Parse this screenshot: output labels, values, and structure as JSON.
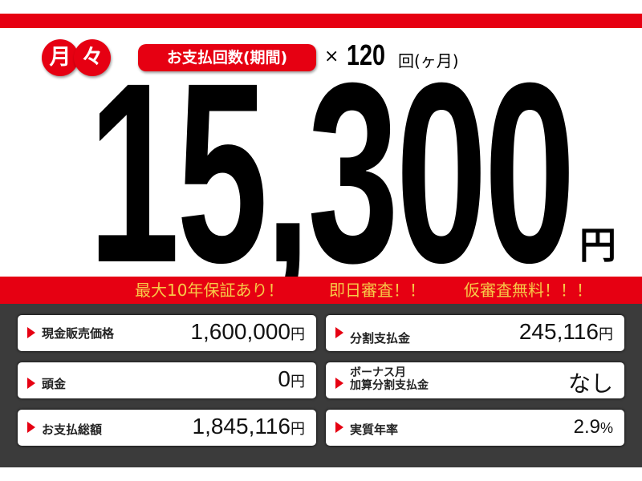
{
  "header": {
    "monthly_chars": [
      "月",
      "々"
    ],
    "payment_count_label": "お支払回数(期間)",
    "times": "×",
    "count": "120",
    "count_unit": "回(ヶ月)"
  },
  "monthly_amount": {
    "value": "15,300",
    "unit": "円"
  },
  "banner": [
    "最大10年保証あり！",
    "即日審査！！",
    "仮審査無料！！！"
  ],
  "details": [
    {
      "label": "現金販売価格",
      "value": "1,600,000",
      "unit": "円"
    },
    {
      "label": "分割支払金",
      "value": "245,116",
      "unit": "円"
    },
    {
      "label": "頭金",
      "value": "0",
      "unit": "円"
    },
    {
      "label": "ボーナス月",
      "label2": "加算分割支払金",
      "value": "なし",
      "unit": ""
    },
    {
      "label": "お支払総額",
      "value": "1,845,116",
      "unit": "円"
    },
    {
      "label": "実質年率",
      "value": "2.9",
      "unit": "%"
    }
  ],
  "colors": {
    "red": "#e60012",
    "banner_text": "#f7c948",
    "panel": "#3b3b3b"
  }
}
